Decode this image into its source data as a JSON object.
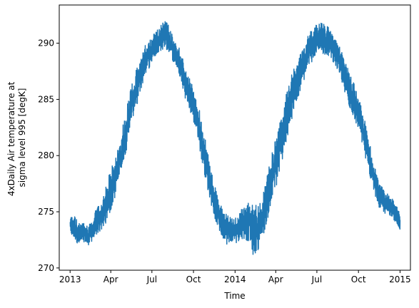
{
  "chart_data": {
    "type": "line",
    "title": "",
    "xlabel": "Time",
    "ylabel_lines": [
      "4xDaily Air temperature at",
      "sigma level 995 [degK]"
    ],
    "ylim": [
      269.8,
      293.4
    ],
    "y_ticks": [
      270,
      275,
      280,
      285,
      290
    ],
    "x_ticks": [
      {
        "date": "2013-01-01",
        "label": "2013"
      },
      {
        "date": "2013-04-01",
        "label": "Apr"
      },
      {
        "date": "2013-07-01",
        "label": "Jul"
      },
      {
        "date": "2013-10-01",
        "label": "Oct"
      },
      {
        "date": "2014-01-01",
        "label": "2014"
      },
      {
        "date": "2014-04-01",
        "label": "Apr"
      },
      {
        "date": "2014-07-01",
        "label": "Jul"
      },
      {
        "date": "2014-10-01",
        "label": "Oct"
      },
      {
        "date": "2015-01-01",
        "label": "2015"
      }
    ],
    "xlim": [
      "2012-12-08",
      "2015-01-24"
    ],
    "grid": false,
    "series": [
      {
        "color": "#1f77b4",
        "frequency": "6-hourly",
        "band_low": [
          [
            "2013-01-01",
            272.9
          ],
          [
            "2013-01-10",
            272.6
          ],
          [
            "2013-01-20",
            272.0
          ],
          [
            "2013-02-01",
            272.3
          ],
          [
            "2013-02-10",
            271.9
          ],
          [
            "2013-02-20",
            272.3
          ],
          [
            "2013-03-01",
            272.9
          ],
          [
            "2013-03-15",
            273.4
          ],
          [
            "2013-04-01",
            275.0
          ],
          [
            "2013-04-15",
            276.8
          ],
          [
            "2013-05-01",
            279.4
          ],
          [
            "2013-05-15",
            282.4
          ],
          [
            "2013-06-01",
            284.9
          ],
          [
            "2013-06-15",
            287.0
          ],
          [
            "2013-07-01",
            288.2
          ],
          [
            "2013-07-15",
            289.2
          ],
          [
            "2013-08-01",
            289.5
          ],
          [
            "2013-08-15",
            288.5
          ],
          [
            "2013-09-01",
            286.5
          ],
          [
            "2013-09-15",
            284.8
          ],
          [
            "2013-10-01",
            283.0
          ],
          [
            "2013-10-15",
            280.4
          ],
          [
            "2013-11-01",
            277.0
          ],
          [
            "2013-11-15",
            274.6
          ],
          [
            "2013-12-01",
            272.8
          ],
          [
            "2013-12-15",
            272.0
          ],
          [
            "2014-01-01",
            272.1
          ],
          [
            "2014-01-15",
            272.6
          ],
          [
            "2014-02-01",
            272.3
          ],
          [
            "2014-02-12",
            270.8
          ],
          [
            "2014-03-01",
            272.3
          ],
          [
            "2014-03-15",
            274.4
          ],
          [
            "2014-04-01",
            276.9
          ],
          [
            "2014-04-15",
            279.5
          ],
          [
            "2014-05-01",
            281.9
          ],
          [
            "2014-05-15",
            284.5
          ],
          [
            "2014-06-01",
            286.4
          ],
          [
            "2014-06-15",
            288.0
          ],
          [
            "2014-07-01",
            289.0
          ],
          [
            "2014-07-15",
            289.0
          ],
          [
            "2014-08-01",
            288.7
          ],
          [
            "2014-08-15",
            287.6
          ],
          [
            "2014-09-01",
            285.6
          ],
          [
            "2014-09-15",
            283.6
          ],
          [
            "2014-10-01",
            282.3
          ],
          [
            "2014-10-15",
            280.0
          ],
          [
            "2014-11-01",
            277.2
          ],
          [
            "2014-11-15",
            275.4
          ],
          [
            "2014-12-01",
            274.6
          ],
          [
            "2014-12-15",
            274.6
          ],
          [
            "2015-01-01",
            273.0
          ]
        ],
        "band_high": [
          [
            "2013-01-01",
            274.6
          ],
          [
            "2013-01-10",
            274.8
          ],
          [
            "2013-01-20",
            274.0
          ],
          [
            "2013-02-01",
            274.1
          ],
          [
            "2013-02-10",
            273.8
          ],
          [
            "2013-02-20",
            274.5
          ],
          [
            "2013-03-01",
            275.4
          ],
          [
            "2013-03-15",
            276.3
          ],
          [
            "2013-04-01",
            278.9
          ],
          [
            "2013-04-15",
            280.5
          ],
          [
            "2013-05-01",
            283.4
          ],
          [
            "2013-05-15",
            286.2
          ],
          [
            "2013-06-01",
            288.2
          ],
          [
            "2013-06-15",
            289.8
          ],
          [
            "2013-07-01",
            290.7
          ],
          [
            "2013-07-15",
            291.4
          ],
          [
            "2013-08-01",
            292.3
          ],
          [
            "2013-08-15",
            290.8
          ],
          [
            "2013-09-01",
            289.6
          ],
          [
            "2013-09-15",
            287.6
          ],
          [
            "2013-10-01",
            286.1
          ],
          [
            "2013-10-15",
            284.0
          ],
          [
            "2013-11-01",
            280.5
          ],
          [
            "2013-11-15",
            277.6
          ],
          [
            "2013-12-01",
            275.6
          ],
          [
            "2013-12-15",
            274.8
          ],
          [
            "2014-01-01",
            274.5
          ],
          [
            "2014-01-15",
            275.4
          ],
          [
            "2014-02-01",
            275.9
          ],
          [
            "2014-02-12",
            275.6
          ],
          [
            "2014-03-01",
            276.0
          ],
          [
            "2014-03-15",
            278.9
          ],
          [
            "2014-04-01",
            281.7
          ],
          [
            "2014-04-15",
            284.0
          ],
          [
            "2014-05-01",
            286.6
          ],
          [
            "2014-05-15",
            288.5
          ],
          [
            "2014-06-01",
            289.7
          ],
          [
            "2014-06-15",
            291.0
          ],
          [
            "2014-07-01",
            291.7
          ],
          [
            "2014-07-15",
            292.0
          ],
          [
            "2014-08-01",
            291.2
          ],
          [
            "2014-08-15",
            290.2
          ],
          [
            "2014-09-01",
            288.6
          ],
          [
            "2014-09-15",
            287.3
          ],
          [
            "2014-10-01",
            285.4
          ],
          [
            "2014-10-15",
            283.2
          ],
          [
            "2014-11-01",
            280.0
          ],
          [
            "2014-11-15",
            277.6
          ],
          [
            "2014-12-01",
            276.8
          ],
          [
            "2014-12-15",
            276.4
          ],
          [
            "2015-01-01",
            274.8
          ]
        ]
      }
    ]
  }
}
